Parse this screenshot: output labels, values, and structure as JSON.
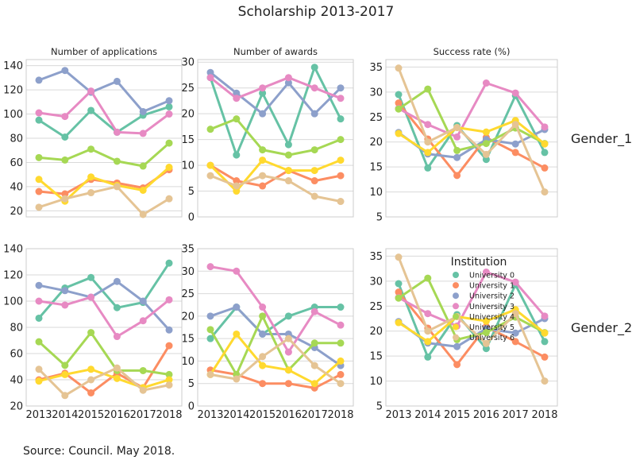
{
  "suptitle": "Scholarship 2013-2017",
  "source": "Source: Council. May 2018.",
  "row_labels": [
    "Gender_1",
    "Gender_2"
  ],
  "legend": {
    "title": "Institution",
    "items": [
      "University 0",
      "University 1",
      "University 2",
      "University 3",
      "University 4",
      "University 5",
      "University 6"
    ]
  },
  "colors": [
    "#66c2a5",
    "#fc8d62",
    "#8da0cb",
    "#e78ac3",
    "#a6d854",
    "#ffd92f",
    "#e5c494"
  ],
  "chart_data": [
    {
      "type": "line",
      "row": "Gender_1",
      "title": "Number of applications",
      "x": [
        2013,
        2014,
        2015,
        2016,
        2017,
        2018
      ],
      "ylim": [
        15,
        145
      ],
      "yticks": [
        20,
        40,
        60,
        80,
        100,
        120,
        140
      ],
      "show_xticks": false,
      "grid": true,
      "series": [
        {
          "name": "University 0",
          "values": [
            95,
            81,
            103,
            85,
            99,
            106
          ]
        },
        {
          "name": "University 1",
          "values": [
            36,
            34,
            46,
            43,
            39,
            54
          ]
        },
        {
          "name": "University 2",
          "values": [
            128,
            136,
            118,
            127,
            102,
            111
          ]
        },
        {
          "name": "University 3",
          "values": [
            101,
            98,
            119,
            85,
            84,
            100
          ]
        },
        {
          "name": "University 4",
          "values": [
            64,
            62,
            71,
            61,
            57,
            76
          ]
        },
        {
          "name": "University 5",
          "values": [
            46,
            28,
            48,
            41,
            37,
            56
          ]
        },
        {
          "name": "University 6",
          "values": [
            23,
            30,
            35,
            40,
            17,
            30
          ]
        }
      ]
    },
    {
      "type": "line",
      "row": "Gender_1",
      "title": "Number of awards",
      "x": [
        2013,
        2014,
        2015,
        2016,
        2017,
        2018
      ],
      "ylim": [
        0,
        30.5
      ],
      "yticks": [
        0,
        5,
        10,
        15,
        20,
        25,
        30
      ],
      "show_xticks": false,
      "grid": true,
      "series": [
        {
          "name": "University 0",
          "values": [
            27,
            12,
            24,
            14,
            29,
            19
          ]
        },
        {
          "name": "University 1",
          "values": [
            10,
            7,
            6,
            9,
            7,
            8
          ]
        },
        {
          "name": "University 2",
          "values": [
            28,
            24,
            20,
            26,
            20,
            25
          ]
        },
        {
          "name": "University 3",
          "values": [
            27,
            23,
            25,
            27,
            25,
            23
          ]
        },
        {
          "name": "University 4",
          "values": [
            17,
            19,
            13,
            12,
            13,
            15
          ]
        },
        {
          "name": "University 5",
          "values": [
            10,
            5,
            11,
            9,
            9,
            11
          ]
        },
        {
          "name": "University 6",
          "values": [
            8,
            6,
            8,
            7,
            4,
            3
          ]
        }
      ]
    },
    {
      "type": "line",
      "row": "Gender_1",
      "title": "Success rate (%)",
      "x": [
        2013,
        2014,
        2015,
        2016,
        2017,
        2018
      ],
      "ylim": [
        5,
        36.5
      ],
      "yticks": [
        5,
        10,
        15,
        20,
        25,
        30,
        35
      ],
      "show_xticks": false,
      "grid": true,
      "series": [
        {
          "name": "University 0",
          "values": [
            29.5,
            14.8,
            23.3,
            16.5,
            29.3,
            17.9
          ]
        },
        {
          "name": "University 1",
          "values": [
            27.8,
            20.6,
            13.3,
            20.9,
            17.9,
            14.8
          ]
        },
        {
          "name": "University 2",
          "values": [
            21.9,
            17.6,
            16.9,
            20.5,
            19.6,
            22.5
          ]
        },
        {
          "name": "University 3",
          "values": [
            26.7,
            23.5,
            21.0,
            31.8,
            29.8,
            23.0
          ]
        },
        {
          "name": "University 4",
          "values": [
            26.6,
            30.6,
            18.3,
            19.7,
            22.8,
            19.7
          ]
        },
        {
          "name": "University 5",
          "values": [
            21.7,
            17.9,
            22.9,
            22.0,
            24.3,
            19.6
          ]
        },
        {
          "name": "University 6",
          "values": [
            34.8,
            20.0,
            22.9,
            17.5,
            23.5,
            10.0
          ]
        }
      ]
    },
    {
      "type": "line",
      "row": "Gender_2",
      "title": "",
      "x": [
        2013,
        2014,
        2015,
        2016,
        2017,
        2018
      ],
      "ylim": [
        20,
        140
      ],
      "yticks": [
        20,
        40,
        60,
        80,
        100,
        120,
        140
      ],
      "show_xticks": true,
      "grid": true,
      "series": [
        {
          "name": "University 0",
          "values": [
            87,
            110,
            118,
            95,
            99,
            129
          ]
        },
        {
          "name": "University 1",
          "values": [
            40,
            45,
            30,
            45,
            34,
            66
          ]
        },
        {
          "name": "University 2",
          "values": [
            112,
            108,
            103,
            115,
            100,
            78
          ]
        },
        {
          "name": "University 3",
          "values": [
            100,
            97,
            103,
            73,
            85,
            101
          ]
        },
        {
          "name": "University 4",
          "values": [
            69,
            51,
            76,
            47,
            47,
            44
          ]
        },
        {
          "name": "University 5",
          "values": [
            39,
            44,
            48,
            41,
            34,
            40
          ]
        },
        {
          "name": "University 6",
          "values": [
            48,
            28,
            40,
            49,
            32,
            36
          ]
        }
      ]
    },
    {
      "type": "line",
      "row": "Gender_2",
      "title": "",
      "x": [
        2013,
        2014,
        2015,
        2016,
        2017,
        2018
      ],
      "ylim": [
        0,
        35
      ],
      "yticks": [
        0,
        5,
        10,
        15,
        20,
        25,
        30,
        35
      ],
      "show_xticks": true,
      "grid": true,
      "series": [
        {
          "name": "University 0",
          "values": [
            15,
            22,
            16,
            20,
            22,
            22
          ]
        },
        {
          "name": "University 1",
          "values": [
            8,
            7,
            5,
            5,
            4,
            7
          ]
        },
        {
          "name": "University 2",
          "values": [
            20,
            22,
            16,
            16,
            13,
            9
          ]
        },
        {
          "name": "University 3",
          "values": [
            31,
            30,
            22,
            12,
            21,
            18
          ]
        },
        {
          "name": "University 4",
          "values": [
            17,
            7,
            20,
            8,
            14,
            14
          ]
        },
        {
          "name": "University 5",
          "values": [
            7,
            16,
            9,
            8,
            5,
            10
          ]
        },
        {
          "name": "University 6",
          "values": [
            7,
            6,
            11,
            15,
            9,
            5
          ]
        }
      ]
    },
    {
      "type": "line",
      "row": "Gender_2",
      "title": "",
      "x": [
        2013,
        2014,
        2015,
        2016,
        2017,
        2018
      ],
      "ylim": [
        5,
        36.5
      ],
      "yticks": [
        5,
        10,
        15,
        20,
        25,
        30,
        35
      ],
      "show_xticks": true,
      "grid": true,
      "legend": "upper-center",
      "series": [
        {
          "name": "University 0",
          "values": [
            29.5,
            14.8,
            23.3,
            16.5,
            29.3,
            17.9
          ]
        },
        {
          "name": "University 1",
          "values": [
            27.8,
            20.6,
            13.3,
            20.9,
            17.9,
            14.8
          ]
        },
        {
          "name": "University 2",
          "values": [
            21.9,
            17.6,
            16.9,
            20.5,
            19.6,
            22.5
          ]
        },
        {
          "name": "University 3",
          "values": [
            26.7,
            23.5,
            21.0,
            31.8,
            29.8,
            23.0
          ]
        },
        {
          "name": "University 4",
          "values": [
            26.6,
            30.6,
            18.3,
            19.7,
            22.8,
            19.7
          ]
        },
        {
          "name": "University 5",
          "values": [
            21.7,
            17.9,
            22.9,
            22.0,
            24.3,
            19.6
          ]
        },
        {
          "name": "University 6",
          "values": [
            34.8,
            20.0,
            22.9,
            17.5,
            23.5,
            10.0
          ]
        }
      ]
    }
  ]
}
